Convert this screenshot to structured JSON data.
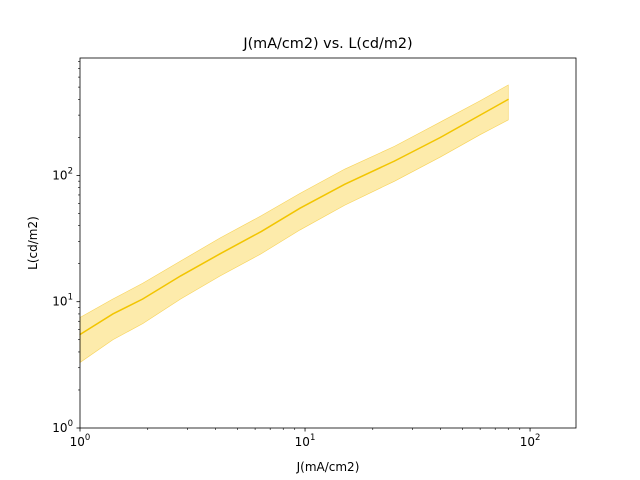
{
  "chart_data": {
    "type": "line",
    "title": "J(mA/cm2) vs. L(cd/m2)",
    "xlabel": "J(mA/cm2)",
    "ylabel": "L(cd/m2)",
    "xscale": "log",
    "yscale": "log",
    "xlim": [
      1,
      160
    ],
    "ylim": [
      1,
      850
    ],
    "grid": false,
    "colors": {
      "line": "#f2c500",
      "band": "#fde9a2",
      "band_edge": "#f7d35a"
    },
    "x_ticks": [
      {
        "value": 1,
        "base": "10",
        "exp": "0"
      },
      {
        "value": 10,
        "base": "10",
        "exp": "1"
      },
      {
        "value": 100,
        "base": "10",
        "exp": "2"
      }
    ],
    "y_ticks": [
      {
        "value": 1,
        "base": "10",
        "exp": "0"
      },
      {
        "value": 10,
        "base": "10",
        "exp": "1"
      },
      {
        "value": 100,
        "base": "10",
        "exp": "2"
      }
    ],
    "series": [
      {
        "x": [
          1.0,
          1.4,
          1.9,
          2.8,
          4.2,
          6.4,
          9.5,
          15,
          25,
          40,
          60,
          80
        ],
        "y": [
          5.5,
          8.0,
          10.5,
          16.0,
          24.0,
          36.0,
          55.0,
          85.0,
          130.0,
          200.0,
          300.0,
          400.0
        ],
        "y_lower": [
          3.3,
          5.0,
          6.7,
          10.5,
          16.0,
          24.0,
          37.0,
          58.0,
          90.0,
          140.0,
          210.0,
          275.0
        ],
        "y_upper": [
          7.5,
          10.5,
          14.0,
          21.0,
          32.0,
          48.0,
          72.0,
          112.0,
          170.0,
          265.0,
          390.0,
          520.0
        ]
      }
    ]
  }
}
